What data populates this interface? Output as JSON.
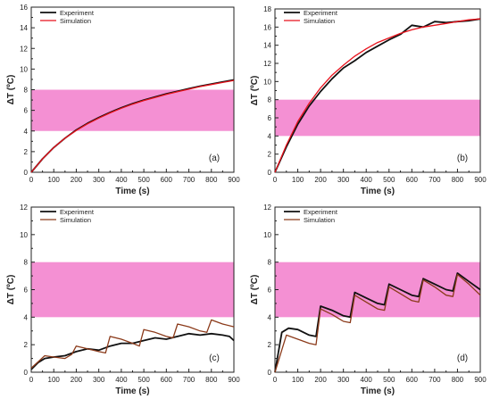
{
  "colors": {
    "experiment": "#111111",
    "simulation_ab": "#e8121c",
    "simulation_cd": "#8b3a1a",
    "band": "#f27ccb",
    "axis": "#222222"
  },
  "chart_data": [
    {
      "type": "line",
      "panel_label": "(a)",
      "xlabel": "Time (s)",
      "ylabel": "ΔT (ºC)",
      "xlim": [
        0,
        900
      ],
      "ylim": [
        0,
        16
      ],
      "xticks": [
        "0",
        "100",
        "200",
        "300",
        "400",
        "500",
        "600",
        "700",
        "800",
        "900"
      ],
      "yticks": [
        "0",
        "2",
        "4",
        "6",
        "8",
        "10",
        "12",
        "14",
        "16"
      ],
      "band": [
        4,
        8
      ],
      "legend": "top-left",
      "series": [
        {
          "name": "Experiment",
          "x": [
            0,
            50,
            100,
            150,
            200,
            250,
            300,
            350,
            400,
            450,
            500,
            550,
            600,
            650,
            700,
            750,
            800,
            850,
            900
          ],
          "y": [
            0,
            1.3,
            2.4,
            3.3,
            4.1,
            4.75,
            5.3,
            5.8,
            6.25,
            6.65,
            7.0,
            7.3,
            7.6,
            7.85,
            8.1,
            8.35,
            8.55,
            8.75,
            8.95
          ]
        },
        {
          "name": "Simulation",
          "x": [
            0,
            50,
            100,
            150,
            200,
            250,
            300,
            350,
            400,
            450,
            500,
            550,
            600,
            650,
            700,
            750,
            800,
            850,
            900
          ],
          "y": [
            0,
            1.3,
            2.4,
            3.3,
            4.05,
            4.7,
            5.25,
            5.75,
            6.2,
            6.6,
            6.95,
            7.25,
            7.55,
            7.8,
            8.05,
            8.3,
            8.5,
            8.7,
            8.9
          ]
        }
      ]
    },
    {
      "type": "line",
      "panel_label": "(b)",
      "xlabel": "Time (s)",
      "ylabel": "ΔT (ºC)",
      "xlim": [
        0,
        900
      ],
      "ylim": [
        0,
        18
      ],
      "xticks": [
        "0",
        "100",
        "200",
        "300",
        "400",
        "500",
        "600",
        "700",
        "800",
        "900"
      ],
      "yticks": [
        "0",
        "2",
        "4",
        "6",
        "8",
        "10",
        "12",
        "14",
        "16",
        "18"
      ],
      "band": [
        4,
        8
      ],
      "legend": "top-right",
      "series": [
        {
          "name": "Experiment",
          "x": [
            0,
            50,
            100,
            150,
            200,
            250,
            300,
            350,
            400,
            450,
            500,
            550,
            600,
            650,
            700,
            750,
            800,
            850,
            900
          ],
          "y": [
            0,
            2.8,
            5.3,
            7.3,
            8.9,
            10.3,
            11.5,
            12.3,
            13.2,
            13.9,
            14.6,
            15.2,
            16.2,
            16.0,
            16.6,
            16.5,
            16.6,
            16.7,
            16.9
          ]
        },
        {
          "name": "Simulation",
          "x": [
            0,
            50,
            100,
            150,
            200,
            250,
            300,
            350,
            400,
            450,
            500,
            550,
            600,
            650,
            700,
            750,
            800,
            850,
            900
          ],
          "y": [
            0,
            3.0,
            5.6,
            7.6,
            9.3,
            10.7,
            11.8,
            12.8,
            13.6,
            14.3,
            14.8,
            15.3,
            15.7,
            16.0,
            16.2,
            16.4,
            16.6,
            16.8,
            16.9
          ]
        }
      ]
    },
    {
      "type": "line",
      "panel_label": "(c)",
      "xlabel": "Time (s)",
      "ylabel": "ΔT (ºC)",
      "xlim": [
        0,
        900
      ],
      "ylim": [
        0,
        12
      ],
      "xticks": [
        "0",
        "100",
        "200",
        "300",
        "400",
        "500",
        "600",
        "700",
        "800",
        "900"
      ],
      "yticks": [
        "0",
        "2",
        "4",
        "6",
        "8",
        "10",
        "12"
      ],
      "band": [
        4,
        8
      ],
      "legend": "top-left",
      "series": [
        {
          "name": "Experiment",
          "x": [
            0,
            30,
            60,
            100,
            150,
            200,
            250,
            300,
            350,
            400,
            450,
            500,
            550,
            600,
            650,
            700,
            750,
            800,
            850,
            880,
            900
          ],
          "y": [
            0.2,
            0.7,
            1.0,
            1.1,
            1.2,
            1.5,
            1.7,
            1.6,
            1.9,
            2.1,
            2.1,
            2.3,
            2.5,
            2.4,
            2.6,
            2.8,
            2.7,
            2.8,
            2.7,
            2.6,
            2.3
          ]
        },
        {
          "name": "Simulation",
          "x": [
            0,
            40,
            60,
            100,
            150,
            180,
            200,
            250,
            300,
            330,
            350,
            400,
            450,
            480,
            500,
            550,
            600,
            630,
            650,
            700,
            750,
            780,
            800,
            850,
            900
          ],
          "y": [
            0.3,
            0.9,
            1.2,
            1.1,
            1.0,
            1.3,
            1.9,
            1.7,
            1.5,
            1.4,
            2.6,
            2.4,
            2.1,
            1.9,
            3.1,
            2.9,
            2.6,
            2.5,
            3.5,
            3.3,
            3.0,
            2.9,
            3.8,
            3.5,
            3.3
          ]
        }
      ]
    },
    {
      "type": "line",
      "panel_label": "(d)",
      "xlabel": "Time (s)",
      "ylabel": "ΔT (ºC)",
      "xlim": [
        0,
        900
      ],
      "ylim": [
        0,
        12
      ],
      "xticks": [
        "0",
        "100",
        "200",
        "300",
        "400",
        "500",
        "600",
        "700",
        "800",
        "900"
      ],
      "yticks": [
        "0",
        "2",
        "4",
        "6",
        "8",
        "10",
        "12"
      ],
      "band": [
        4,
        8
      ],
      "legend": "top-left",
      "series": [
        {
          "name": "Experiment",
          "x": [
            0,
            30,
            60,
            100,
            150,
            180,
            200,
            250,
            300,
            330,
            350,
            400,
            450,
            480,
            500,
            550,
            600,
            630,
            650,
            700,
            750,
            780,
            800,
            850,
            900
          ],
          "y": [
            0,
            2.9,
            3.2,
            3.1,
            2.7,
            2.6,
            4.8,
            4.5,
            4.1,
            4.0,
            5.8,
            5.4,
            5.0,
            4.9,
            6.4,
            6.0,
            5.6,
            5.5,
            6.8,
            6.4,
            6.0,
            5.9,
            7.2,
            6.6,
            6.0
          ]
        },
        {
          "name": "Simulation",
          "x": [
            0,
            50,
            100,
            150,
            180,
            200,
            250,
            300,
            330,
            350,
            400,
            450,
            480,
            500,
            550,
            600,
            630,
            650,
            700,
            750,
            780,
            800,
            850,
            900
          ],
          "y": [
            0,
            2.7,
            2.4,
            2.1,
            2.0,
            4.6,
            4.2,
            3.7,
            3.6,
            5.6,
            5.1,
            4.6,
            4.5,
            6.2,
            5.7,
            5.2,
            5.1,
            6.7,
            6.2,
            5.6,
            5.5,
            7.1,
            6.4,
            5.6
          ]
        }
      ]
    }
  ]
}
